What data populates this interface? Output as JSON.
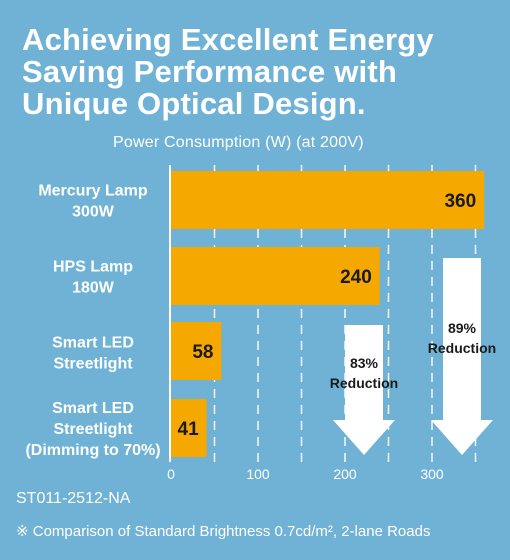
{
  "title_lines": [
    "Achieving Excellent Energy",
    "Saving Performance with",
    "Unique Optical Design."
  ],
  "subtitle": "Power Consumption (W)  (at 200V)",
  "code": "ST011-2512-NA",
  "note": "※ Comparison of Standard Brightness 0.7cd/m², 2-lane Roads",
  "colors": {
    "background": "#6fb2d6",
    "bar": "#f5a800",
    "text": "#ffffff",
    "value_text": "#1a1a1a"
  },
  "chart_data": {
    "type": "bar",
    "orientation": "horizontal",
    "categories": [
      [
        "Mercury Lamp",
        "300W"
      ],
      [
        "HPS Lamp",
        "180W"
      ],
      [
        "Smart LED",
        "Streetlight"
      ],
      [
        "Smart LED",
        "Streetlight",
        "(Dimming to 70%)"
      ]
    ],
    "values": [
      360,
      240,
      58,
      41
    ],
    "xlim": [
      0,
      360
    ],
    "xticks": [
      0,
      100,
      200,
      300
    ],
    "gridlines": "dashed vertical",
    "annotations": [
      {
        "text": [
          "83%",
          "Reduction"
        ],
        "shape": "down-arrow"
      },
      {
        "text": [
          "89%",
          "Reduction"
        ],
        "shape": "down-arrow"
      }
    ]
  }
}
